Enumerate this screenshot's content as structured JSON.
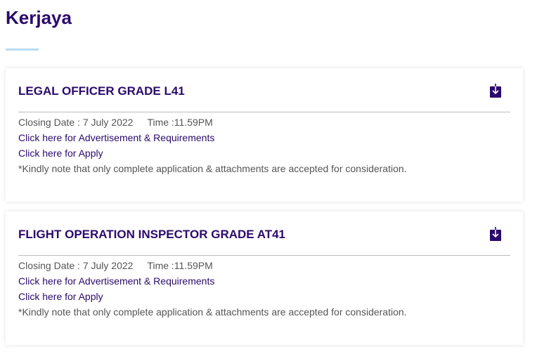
{
  "page": {
    "title": "Kerjaya"
  },
  "jobs": [
    {
      "title": "LEGAL OFFICER GRADE L41",
      "closing": "Closing Date : 7 July 2022",
      "time": "Time :11.59PM",
      "advert_link": "Click here for Advertisement & Requirements",
      "apply_link": "Click here for Apply",
      "note": "*Kindly note that only complete application & attachments are accepted for consideration.",
      "icon": "download-icon"
    },
    {
      "title": "FLIGHT OPERATION INSPECTOR GRADE AT41",
      "closing": "Closing Date : 7 July 2022",
      "time": "Time :11.59PM",
      "advert_link": "Click here for Advertisement & Requirements",
      "apply_link": "Click here for Apply",
      "note": "*Kindly note that only complete application & attachments are accepted for consideration.",
      "icon": "download-icon"
    }
  ],
  "colors": {
    "brand": "#2a0a6b",
    "accent": "#b9dcf5"
  }
}
